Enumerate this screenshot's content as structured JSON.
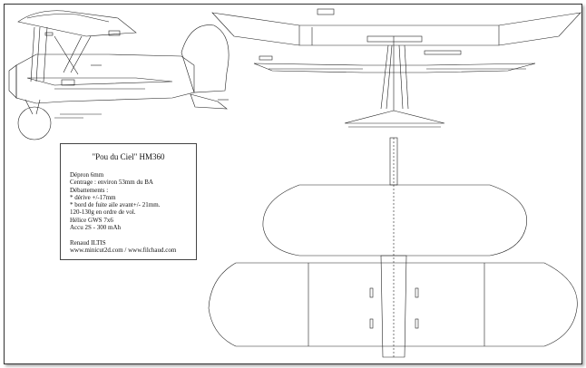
{
  "info_box": {
    "title": "\"Pou du Ciel\" HM360",
    "lines": [
      "Dépron 6mm",
      "Centrage : environ 53mm du BA",
      "Débattements :",
      "* dérive +/-17mm",
      "* bord de fuite aile avant+/- 21mm.",
      "120-130g en ordre de vol.",
      "Hélice GWS 7x6",
      "Accu 2S - 300 mAh"
    ],
    "author": "Renaud ILTIS",
    "websites": "www.minicut2d.com / www.filchaud.com"
  },
  "colors": {
    "line": "#222222",
    "frame": "#333333",
    "background": "#ffffff"
  }
}
